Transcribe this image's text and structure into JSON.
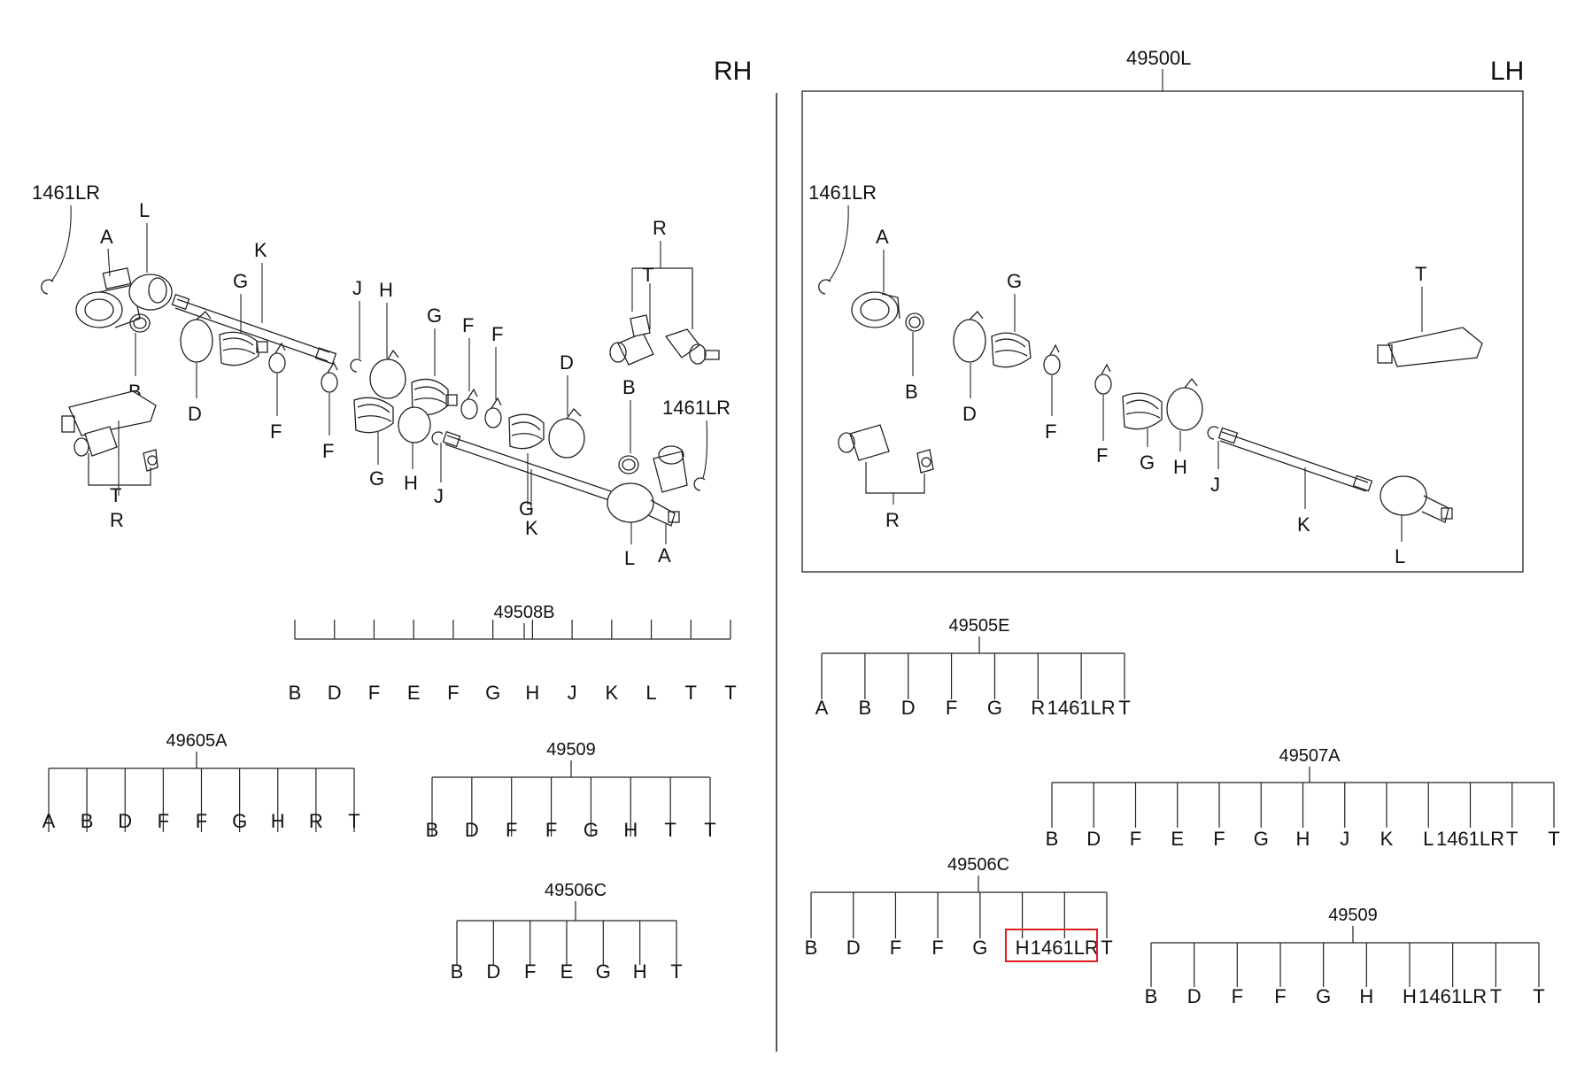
{
  "sides": {
    "rh": "RH",
    "lh": "LH"
  },
  "rh_labels": {
    "l1461a": "1461LR",
    "a": "A",
    "l": "L",
    "b": "B",
    "d": "D",
    "g": "G",
    "k": "K",
    "f1": "F",
    "f2": "F",
    "t": "T",
    "r": "R",
    "j1": "J",
    "h1": "H",
    "g2": "G",
    "g3": "G",
    "h2": "H",
    "f3": "F",
    "f4": "F",
    "d2": "D",
    "b2": "B",
    "l1461b": "1461LR",
    "j2": "J",
    "g4": "G",
    "k2": "K",
    "l2": "L",
    "a2": "A",
    "r2": "R",
    "t2": "T"
  },
  "lh_labels": {
    "assembly": "49500L",
    "l1461": "1461LR",
    "a": "A",
    "b": "B",
    "g": "G",
    "d": "D",
    "f1": "F",
    "f2": "F",
    "g2": "G",
    "h": "H",
    "j": "J",
    "k": "K",
    "l": "L",
    "t": "T",
    "r": "R"
  },
  "kits": [
    {
      "code": "49508B",
      "items": [
        "B",
        "D",
        "F",
        "E",
        "F",
        "G",
        "H",
        "J",
        "K",
        "L",
        "T",
        "T"
      ]
    },
    {
      "code": "49605A",
      "items": [
        "A",
        "B",
        "D",
        "F",
        "F",
        "G",
        "H",
        "R",
        "T"
      ]
    },
    {
      "code": "49509",
      "items": [
        "B",
        "D",
        "F",
        "F",
        "G",
        "H",
        "T",
        "T"
      ]
    },
    {
      "code": "49506C",
      "items": [
        "B",
        "D",
        "F",
        "E",
        "G",
        "H",
        "T"
      ]
    },
    {
      "code": "49505E",
      "items": [
        "A",
        "B",
        "D",
        "F",
        "G",
        "R",
        "1461LR",
        "T"
      ]
    },
    {
      "code": "49507A",
      "items": [
        "B",
        "D",
        "F",
        "E",
        "F",
        "G",
        "H",
        "J",
        "K",
        "L",
        "1461LR",
        "T",
        "T"
      ]
    },
    {
      "code": "49506C",
      "items": [
        "B",
        "D",
        "F",
        "F",
        "G",
        "H",
        "1461LR",
        "T"
      ]
    },
    {
      "code": "49509",
      "items": [
        "B",
        "D",
        "F",
        "F",
        "G",
        "H",
        "H",
        "1461LR",
        "T",
        "T"
      ]
    }
  ],
  "highlight_color": "#e02020"
}
